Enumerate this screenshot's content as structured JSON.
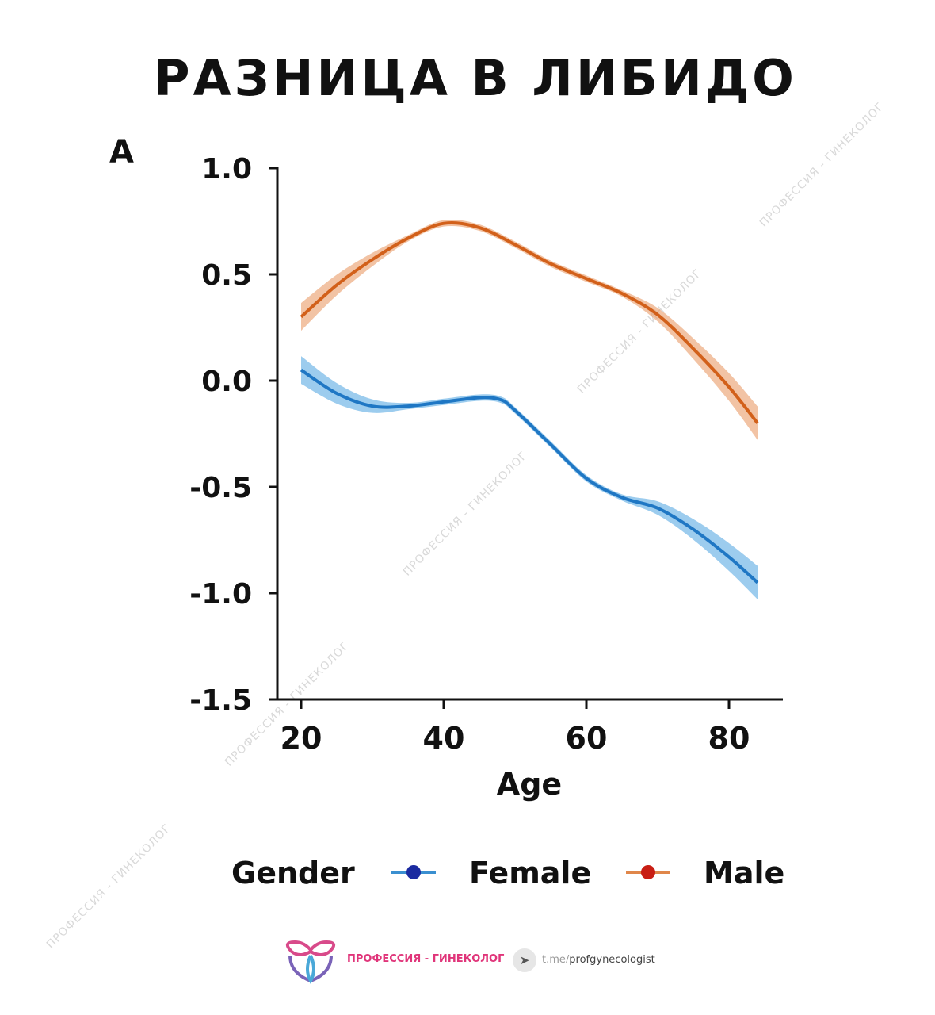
{
  "title": "РАЗНИЦА В ЛИБИДО",
  "watermark": "ПРОФЕССИЯ - ГИНЕКОЛОГ",
  "footer": {
    "brand": "ПРОФЕССИЯ - ГИНЕКОЛОГ",
    "link_prefix": "t.me/",
    "link_handle": "profgynecologist"
  },
  "chart_data": {
    "type": "line",
    "panel_label": "A",
    "title": "",
    "xlabel": "Age",
    "ylabel": "",
    "xlim": [
      18,
      86
    ],
    "ylim": [
      -1.5,
      1.0
    ],
    "xticks": [
      "20",
      "40",
      "60",
      "80"
    ],
    "yticks": [
      "1.0",
      "0.5",
      "0.0",
      "-0.5",
      "-1.0",
      "-1.5"
    ],
    "legend": {
      "title": "Gender",
      "placement": "bottom",
      "entries": [
        "Female",
        "Male"
      ]
    },
    "series": [
      {
        "name": "Female",
        "color": "#1f77c4",
        "band_color": "#4aa3e0",
        "x": [
          20,
          25,
          30,
          35,
          40,
          45,
          48,
          50,
          55,
          60,
          65,
          70,
          75,
          80,
          84
        ],
        "y": [
          0.05,
          -0.06,
          -0.12,
          -0.12,
          -0.1,
          -0.08,
          -0.09,
          -0.14,
          -0.3,
          -0.46,
          -0.55,
          -0.6,
          -0.7,
          -0.83,
          -0.95
        ]
      },
      {
        "name": "Male",
        "color": "#d2601a",
        "band_color": "#e8915a",
        "x": [
          20,
          25,
          30,
          35,
          40,
          45,
          50,
          55,
          60,
          65,
          70,
          75,
          80,
          84
        ],
        "y": [
          0.3,
          0.45,
          0.57,
          0.67,
          0.74,
          0.72,
          0.64,
          0.55,
          0.48,
          0.41,
          0.31,
          0.15,
          -0.03,
          -0.2
        ]
      }
    ]
  }
}
